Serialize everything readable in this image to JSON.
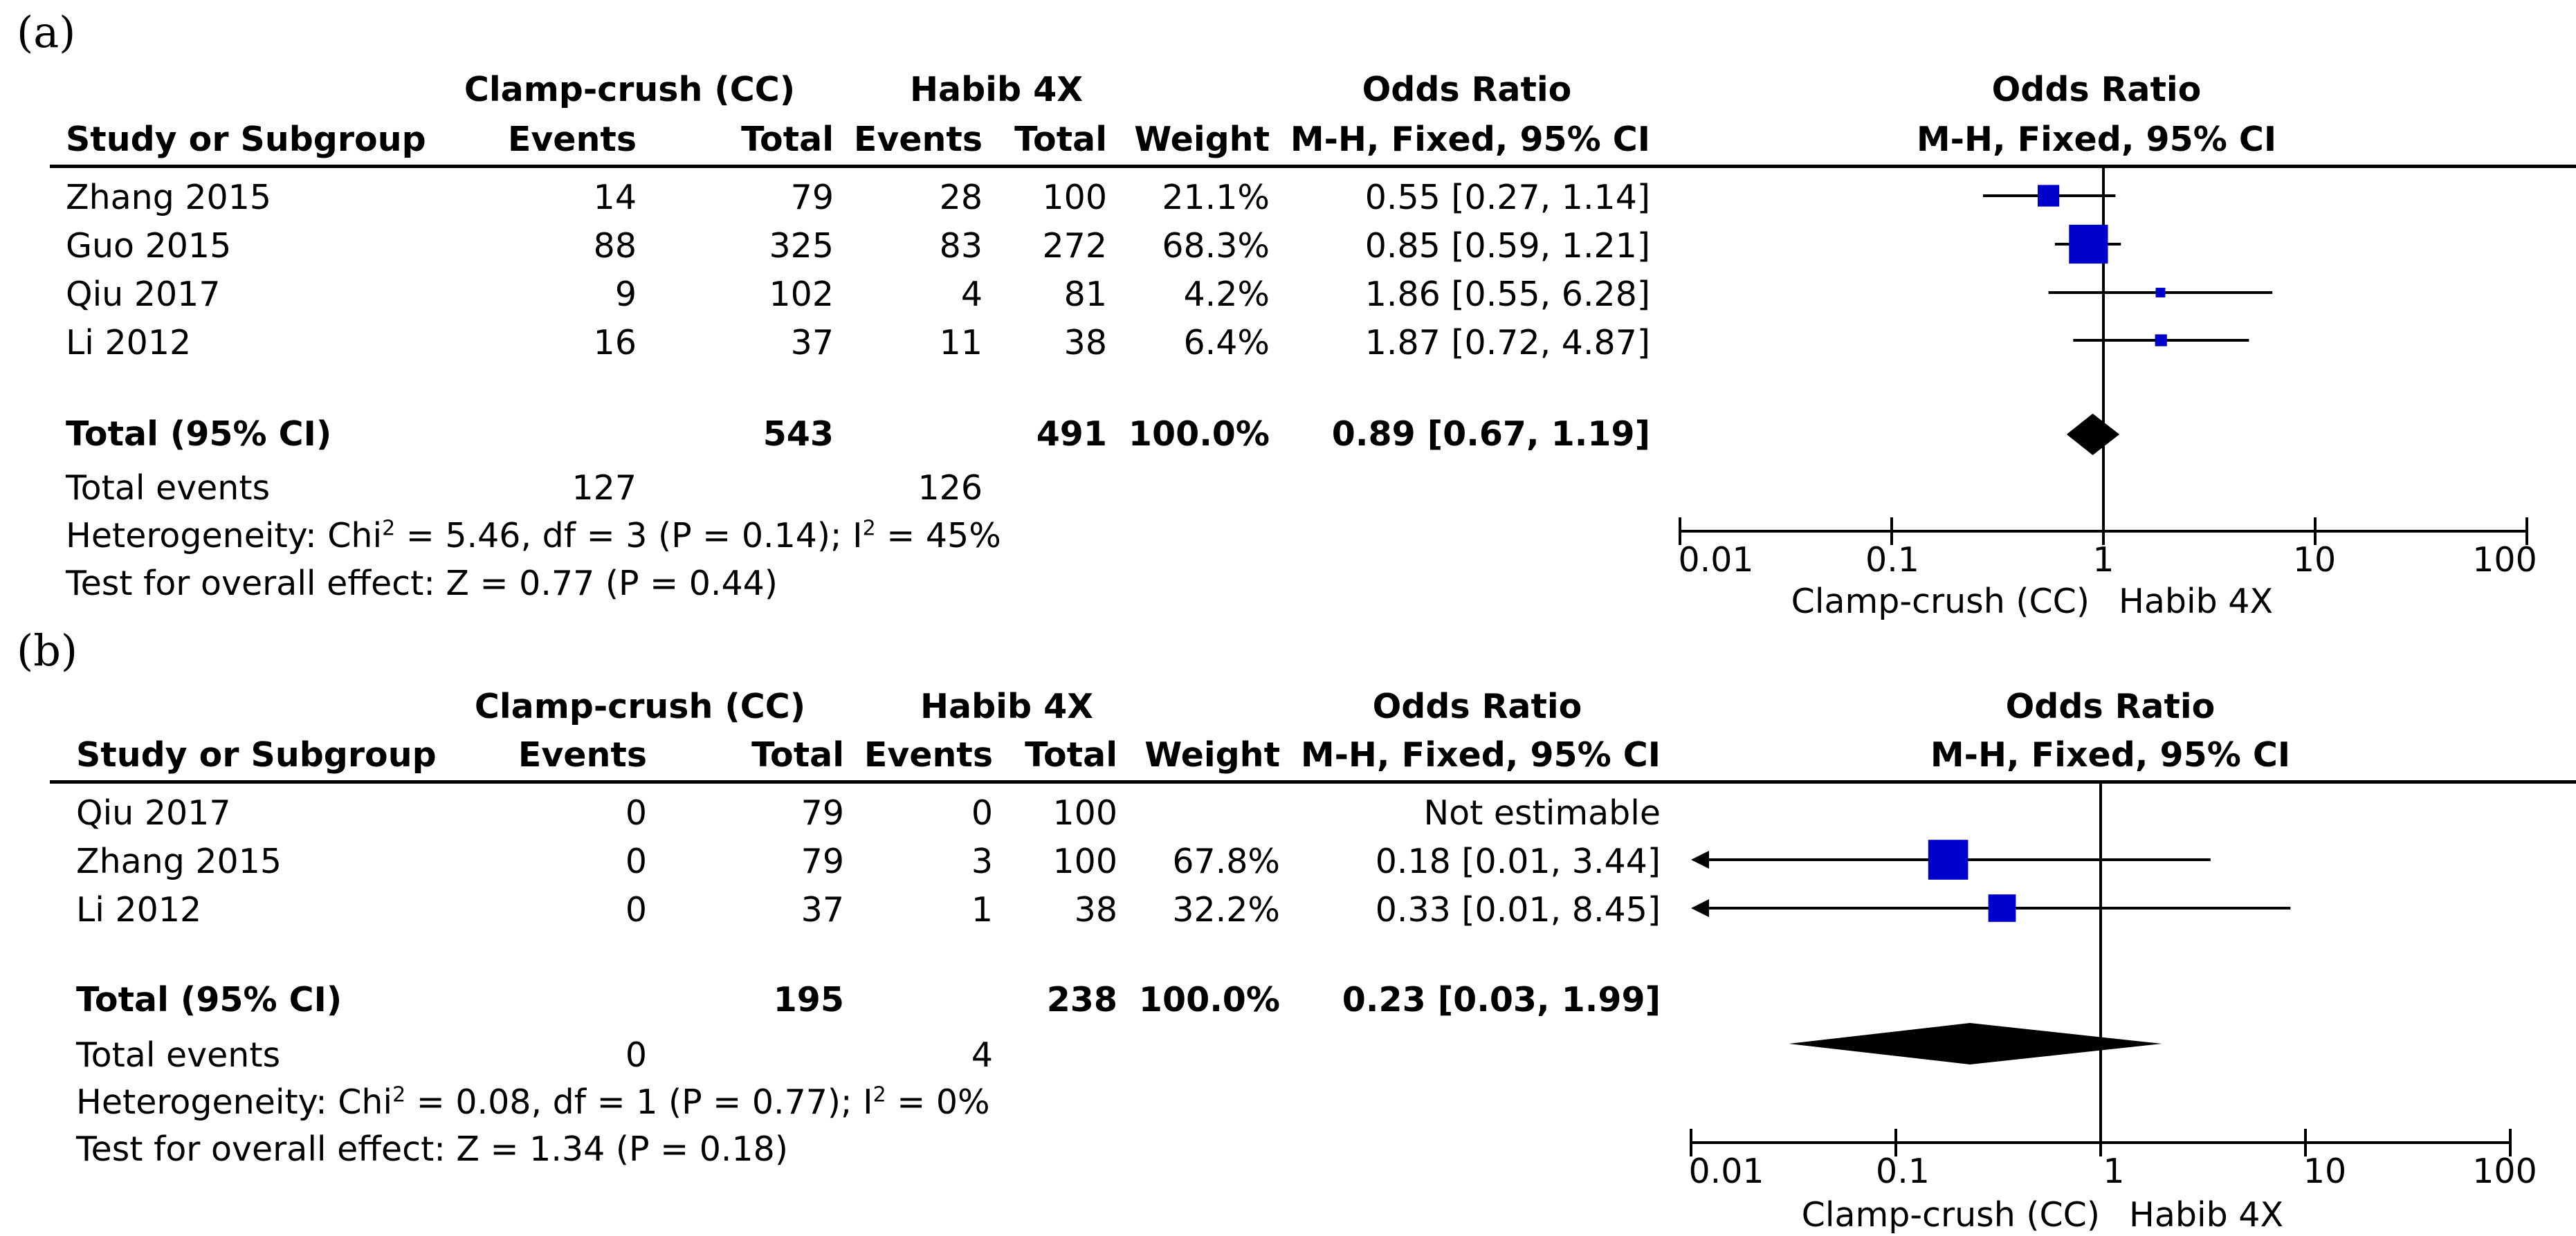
{
  "headers": {
    "study": "Study or Subgroup",
    "exp_group": "Clamp-crush (CC)",
    "ctl_group": "Habib 4X",
    "events": "Events",
    "total": "Total",
    "weight": "Weight",
    "or_title": "Odds Ratio",
    "or_method": "M-H, Fixed, 95% CI"
  },
  "panels": [
    {
      "label": "(a)",
      "studies": [
        {
          "name": "Zhang 2015",
          "exp_events": "14",
          "exp_total": "79",
          "ctl_events": "28",
          "ctl_total": "100",
          "weight": "21.1%",
          "ci_text": "0.55 [0.27, 1.14]"
        },
        {
          "name": "Guo 2015",
          "exp_events": "88",
          "exp_total": "325",
          "ctl_events": "83",
          "ctl_total": "272",
          "weight": "68.3%",
          "ci_text": "0.85 [0.59, 1.21]"
        },
        {
          "name": "Qiu 2017",
          "exp_events": "9",
          "exp_total": "102",
          "ctl_events": "4",
          "ctl_total": "81",
          "weight": "4.2%",
          "ci_text": "1.86 [0.55, 6.28]"
        },
        {
          "name": "Li 2012",
          "exp_events": "16",
          "exp_total": "37",
          "ctl_events": "11",
          "ctl_total": "38",
          "weight": "6.4%",
          "ci_text": "1.87 [0.72, 4.87]"
        }
      ],
      "total": {
        "label": "Total (95% CI)",
        "exp_total": "543",
        "ctl_total": "491",
        "weight": "100.0%",
        "ci_text": "0.89 [0.67, 1.19]"
      },
      "total_events": {
        "label": "Total events",
        "exp": "127",
        "ctl": "126"
      },
      "heterogeneity": {
        "prefix": "Heterogeneity: Chi",
        "sup1": "2",
        "mid": " = 5.46, df = 3 (P = 0.14); I",
        "sup2": "2",
        "suffix": " = 45%"
      },
      "overall_effect": "Test for overall effect: Z = 0.77 (P = 0.44)",
      "axis": {
        "ticks": [
          "0.01",
          "0.1",
          "1",
          "10",
          "100"
        ],
        "favours_left": "Clamp-crush (CC)",
        "favours_right": "Habib 4X"
      }
    },
    {
      "label": "(b)",
      "studies": [
        {
          "name": "Qiu 2017",
          "exp_events": "0",
          "exp_total": "79",
          "ctl_events": "0",
          "ctl_total": "100",
          "weight": "",
          "ci_text": "Not estimable"
        },
        {
          "name": "Zhang 2015",
          "exp_events": "0",
          "exp_total": "79",
          "ctl_events": "3",
          "ctl_total": "100",
          "weight": "67.8%",
          "ci_text": "0.18 [0.01, 3.44]"
        },
        {
          "name": "Li 2012",
          "exp_events": "0",
          "exp_total": "37",
          "ctl_events": "1",
          "ctl_total": "38",
          "weight": "32.2%",
          "ci_text": "0.33 [0.01, 8.45]"
        }
      ],
      "total": {
        "label": "Total (95% CI)",
        "exp_total": "195",
        "ctl_total": "238",
        "weight": "100.0%",
        "ci_text": "0.23 [0.03, 1.99]"
      },
      "total_events": {
        "label": "Total events",
        "exp": "0",
        "ctl": "4"
      },
      "heterogeneity": {
        "prefix": "Heterogeneity: Chi",
        "sup1": "2",
        "mid": " = 0.08, df = 1 (P = 0.77); I",
        "sup2": "2",
        "suffix": " = 0%"
      },
      "overall_effect": "Test for overall effect: Z = 1.34 (P = 0.18)",
      "axis": {
        "ticks": [
          "0.01",
          "0.1",
          "1",
          "10",
          "100"
        ],
        "favours_left": "Clamp-crush (CC)",
        "favours_right": "Habib 4X"
      }
    }
  ],
  "colors": {
    "study_marker": "#0000CC",
    "total_diamond": "#000000",
    "line": "#000000"
  },
  "chart_data": [
    {
      "type": "forest",
      "title": "Odds Ratio M-H, Fixed, 95% CI",
      "xscale": "log",
      "xlim": [
        0.01,
        100
      ],
      "xticks": [
        0.01,
        0.1,
        1,
        10,
        100
      ],
      "xlabel_left": "Clamp-crush (CC)",
      "xlabel_right": "Habib 4X",
      "studies": [
        {
          "name": "Zhang 2015",
          "or": 0.55,
          "lo": 0.27,
          "hi": 1.14,
          "weight": 21.1
        },
        {
          "name": "Guo 2015",
          "or": 0.85,
          "lo": 0.59,
          "hi": 1.21,
          "weight": 68.3
        },
        {
          "name": "Qiu 2017",
          "or": 1.86,
          "lo": 0.55,
          "hi": 6.28,
          "weight": 4.2
        },
        {
          "name": "Li 2012",
          "or": 1.87,
          "lo": 0.72,
          "hi": 4.87,
          "weight": 6.4
        }
      ],
      "pooled": {
        "or": 0.89,
        "lo": 0.67,
        "hi": 1.19
      }
    },
    {
      "type": "forest",
      "title": "Odds Ratio M-H, Fixed, 95% CI",
      "xscale": "log",
      "xlim": [
        0.01,
        100
      ],
      "xticks": [
        0.01,
        0.1,
        1,
        10,
        100
      ],
      "xlabel_left": "Clamp-crush (CC)",
      "xlabel_right": "Habib 4X",
      "studies": [
        {
          "name": "Qiu 2017",
          "or": null,
          "lo": null,
          "hi": null,
          "weight": null
        },
        {
          "name": "Zhang 2015",
          "or": 0.18,
          "lo": 0.01,
          "hi": 3.44,
          "weight": 67.8
        },
        {
          "name": "Li 2012",
          "or": 0.33,
          "lo": 0.01,
          "hi": 8.45,
          "weight": 32.2
        }
      ],
      "pooled": {
        "or": 0.23,
        "lo": 0.03,
        "hi": 1.99
      }
    }
  ]
}
